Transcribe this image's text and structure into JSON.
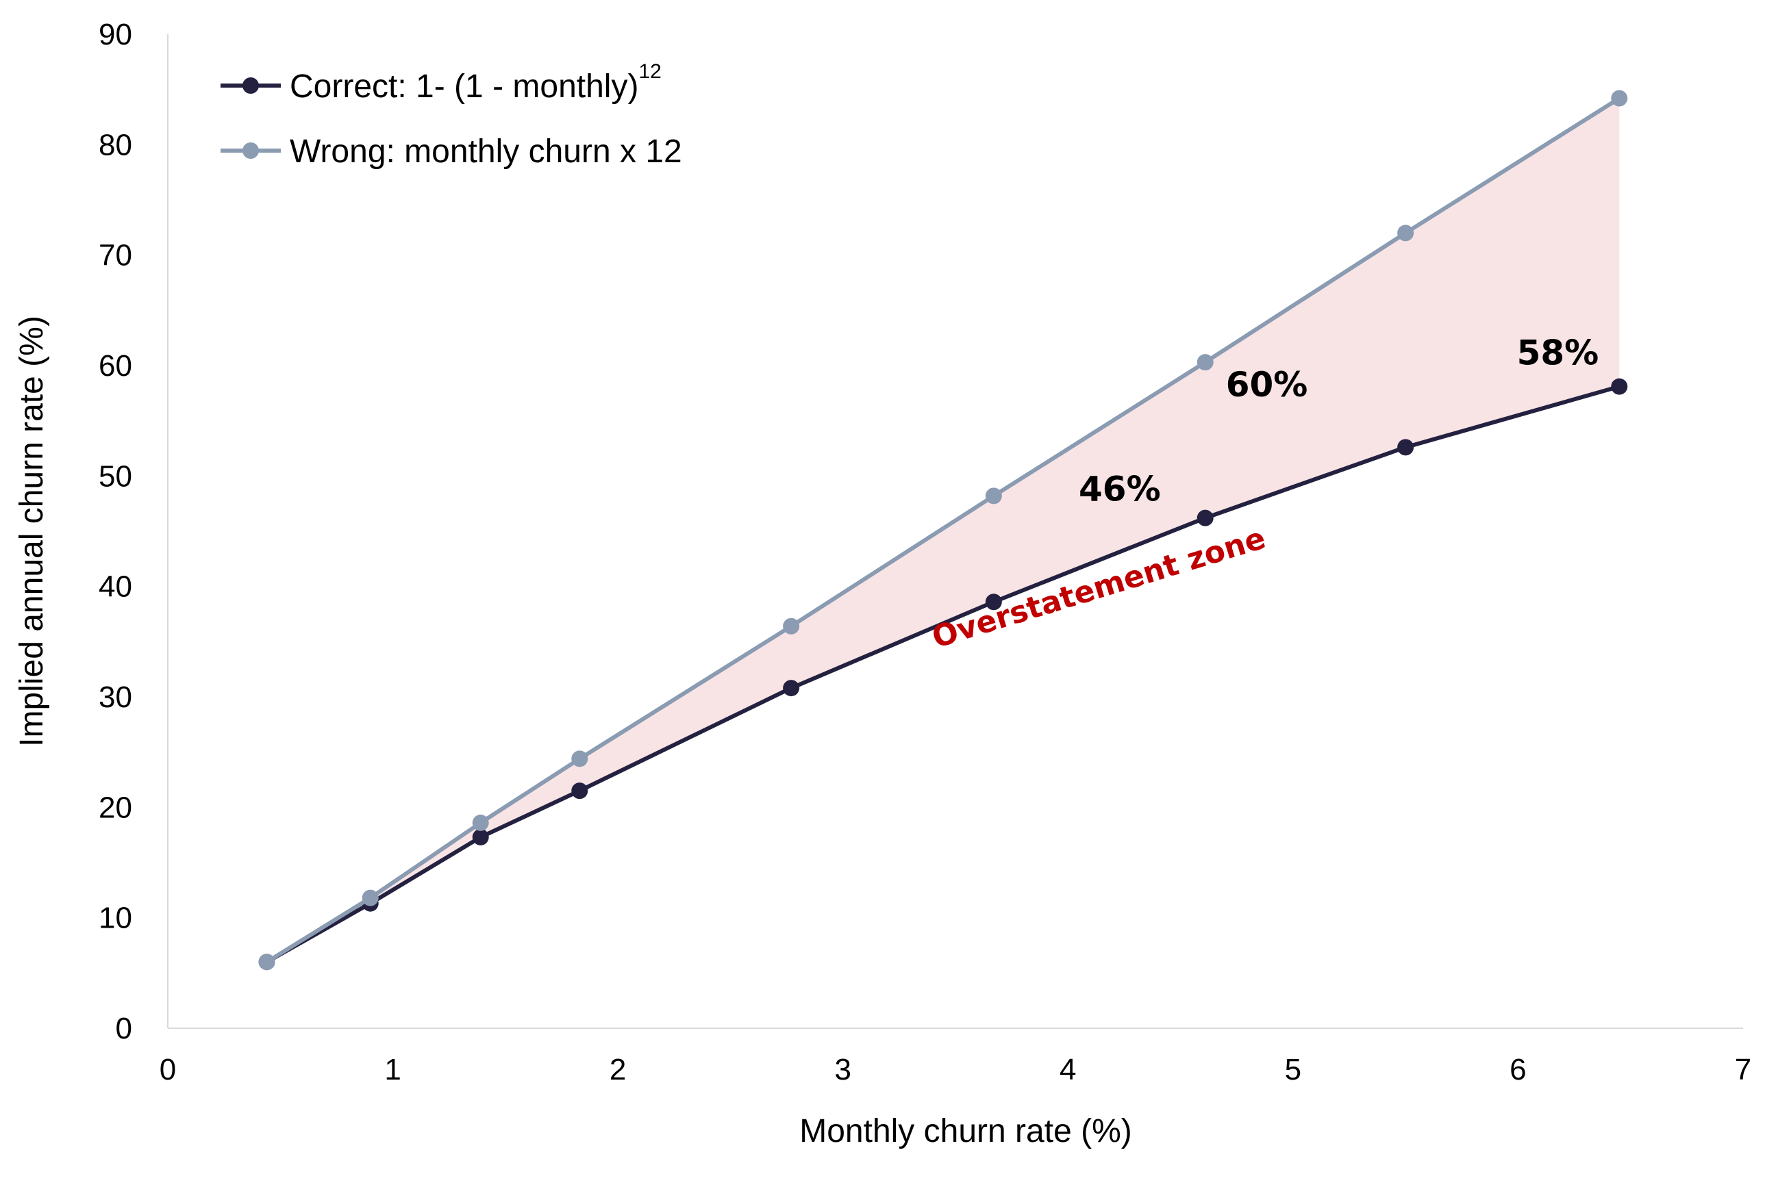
{
  "chart_data": {
    "type": "line",
    "xlabel": "Monthly churn rate (%)",
    "ylabel": "Implied annual churn rate (%)",
    "xlim": [
      0,
      7
    ],
    "ylim": [
      0,
      90
    ],
    "x_ticks": [
      0,
      1,
      2,
      3,
      4,
      5,
      6,
      7
    ],
    "y_ticks": [
      0,
      10,
      20,
      30,
      40,
      50,
      60,
      70,
      80,
      90
    ],
    "grid": false,
    "legend_position": "top-left",
    "series": [
      {
        "name": "Correct: 1- (1 - monthly)",
        "name_superscript": "12",
        "color": "#23213f",
        "x": [
          0.44,
          0.9,
          1.39,
          1.83,
          2.77,
          3.67,
          4.61,
          5.5,
          6.45
        ],
        "y": [
          6.0,
          11.3,
          17.3,
          21.5,
          30.8,
          38.6,
          46.2,
          52.6,
          58.1
        ]
      },
      {
        "name": "Wrong: monthly churn x 12",
        "color": "#8a9bb2",
        "x": [
          0.44,
          0.9,
          1.39,
          1.83,
          2.77,
          3.67,
          4.61,
          5.5,
          6.45
        ],
        "y": [
          6.0,
          11.8,
          18.6,
          24.4,
          36.4,
          48.2,
          60.3,
          72.0,
          84.2
        ]
      }
    ],
    "fill_color": "#f8e4e5",
    "annotations": [
      {
        "text": "46%",
        "x": 4.61,
        "y": 46.2,
        "placement": "above-left"
      },
      {
        "text": "60%",
        "x": 4.61,
        "y": 60.3,
        "placement": "below-right"
      },
      {
        "text": "58%",
        "x": 6.45,
        "y": 58.1,
        "placement": "above-left"
      },
      {
        "text": "Overstatement zone",
        "x": 4.15,
        "y": 39.0,
        "rotation": -17,
        "color": "#c00000"
      }
    ]
  }
}
